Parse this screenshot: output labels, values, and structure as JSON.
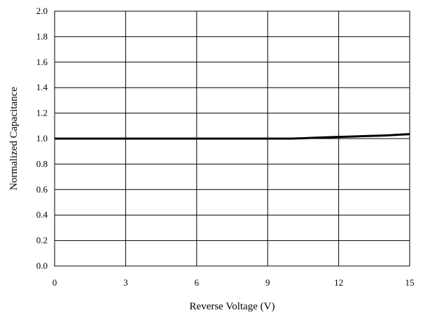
{
  "chart_data": {
    "type": "line",
    "title": "",
    "xlabel": "Reverse Voltage (V)",
    "ylabel": "Normalized Capacitance",
    "xlim": [
      0,
      15
    ],
    "ylim": [
      0.0,
      2.0
    ],
    "xticks": [
      0,
      3,
      6,
      9,
      12,
      15
    ],
    "yticks": [
      0.0,
      0.2,
      0.4,
      0.6,
      0.8,
      1.0,
      1.2,
      1.4,
      1.6,
      1.8,
      2.0
    ],
    "x_tick_labels": [
      "0",
      "3",
      "6",
      "9",
      "12",
      "15"
    ],
    "y_tick_labels": [
      "0.0",
      "0.2",
      "0.4",
      "0.6",
      "0.8",
      "1.0",
      "1.2",
      "1.4",
      "1.6",
      "1.8",
      "2.0"
    ],
    "grid": true,
    "legend": "none",
    "series": [
      {
        "color": "#000000",
        "x": [
          0,
          1,
          2,
          3,
          4,
          5,
          6,
          7,
          8,
          9,
          10,
          10.5,
          11,
          11.5,
          12,
          12.5,
          13,
          13.5,
          14,
          14.5,
          15
        ],
        "y": [
          1.0,
          1.0,
          1.0,
          1.0,
          1.0,
          1.0,
          1.0,
          1.0,
          1.0,
          1.0,
          1.0,
          1.003,
          1.007,
          1.01,
          1.013,
          1.016,
          1.019,
          1.022,
          1.025,
          1.03,
          1.035
        ]
      }
    ]
  }
}
